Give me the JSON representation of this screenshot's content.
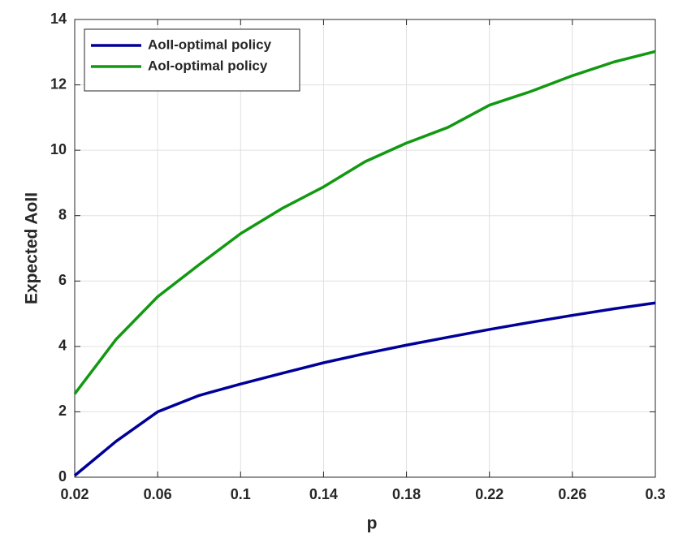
{
  "chart_data": {
    "type": "line",
    "x_label": "p",
    "y_label": "Expected AoII",
    "x": [
      0.02,
      0.04,
      0.06,
      0.08,
      0.1,
      0.12,
      0.14,
      0.16,
      0.18,
      0.2,
      0.22,
      0.24,
      0.26,
      0.28,
      0.3
    ],
    "series": [
      {
        "name": "AoII-optimal policy",
        "color": "#000099",
        "values": [
          0.05,
          1.1,
          2.0,
          2.5,
          2.85,
          3.18,
          3.5,
          3.78,
          4.04,
          4.28,
          4.52,
          4.74,
          4.95,
          5.15,
          5.33
        ]
      },
      {
        "name": "AoI-optimal policy",
        "color": "#119911",
        "values": [
          2.55,
          4.22,
          5.52,
          6.5,
          7.45,
          8.22,
          8.88,
          9.65,
          10.22,
          10.7,
          11.38,
          11.8,
          12.28,
          12.7,
          13.02
        ]
      }
    ],
    "xlim": [
      0.02,
      0.3
    ],
    "xticks": [
      0.02,
      0.06,
      0.1,
      0.14,
      0.18,
      0.22,
      0.26,
      0.3
    ],
    "ylim": [
      0,
      14
    ],
    "yticks": [
      0,
      2,
      4,
      6,
      8,
      10,
      12,
      14
    ],
    "grid": true,
    "legend": "upper left"
  }
}
